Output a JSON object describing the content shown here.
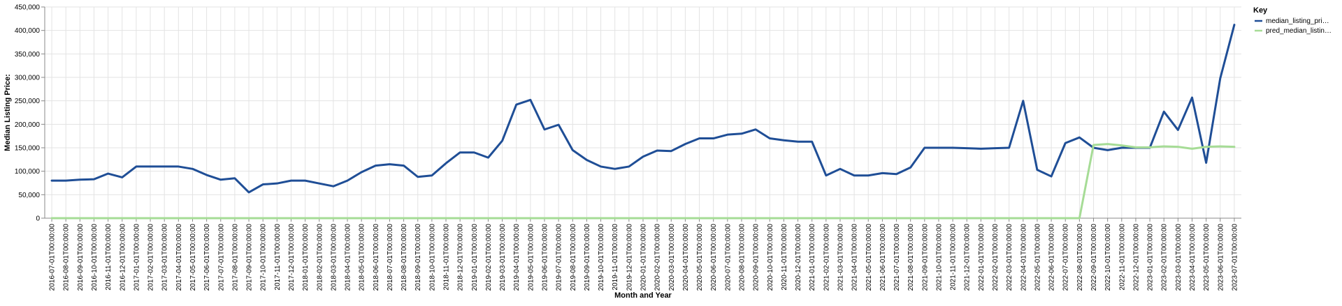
{
  "chart_data": {
    "type": "line",
    "title": "",
    "xlabel": "Month and Year",
    "ylabel": "Median Listing Price:",
    "ylim": [
      0,
      450000
    ],
    "yticks": [
      0,
      50000,
      100000,
      150000,
      200000,
      250000,
      300000,
      350000,
      400000,
      450000
    ],
    "ytick_labels": [
      "0",
      "50,000",
      "100,000",
      "150,000",
      "200,000",
      "250,000",
      "300,000",
      "350,000",
      "400,000",
      "450,000"
    ],
    "grid": true,
    "legend": {
      "title": "Key",
      "placement": "right",
      "entries": [
        "median_listing_pri…",
        "pred_median_listin…"
      ]
    },
    "x": [
      "2016-07-01T00:00:00",
      "2016-08-01T00:00:00",
      "2016-09-01T00:00:00",
      "2016-10-01T00:00:00",
      "2016-11-01T00:00:00",
      "2016-12-01T00:00:00",
      "2017-01-01T00:00:00",
      "2017-02-01T00:00:00",
      "2017-03-01T00:00:00",
      "2017-04-01T00:00:00",
      "2017-05-01T00:00:00",
      "2017-06-01T00:00:00",
      "2017-07-01T00:00:00",
      "2017-08-01T00:00:00",
      "2017-09-01T00:00:00",
      "2017-10-01T00:00:00",
      "2017-11-01T00:00:00",
      "2017-12-01T00:00:00",
      "2018-01-01T00:00:00",
      "2018-02-01T00:00:00",
      "2018-03-01T00:00:00",
      "2018-04-01T00:00:00",
      "2018-05-01T00:00:00",
      "2018-06-01T00:00:00",
      "2018-07-01T00:00:00",
      "2018-08-01T00:00:00",
      "2018-09-01T00:00:00",
      "2018-10-01T00:00:00",
      "2018-11-01T00:00:00",
      "2018-12-01T00:00:00",
      "2019-01-01T00:00:00",
      "2019-02-01T00:00:00",
      "2019-03-01T00:00:00",
      "2019-04-01T00:00:00",
      "2019-05-01T00:00:00",
      "2019-06-01T00:00:00",
      "2019-07-01T00:00:00",
      "2019-08-01T00:00:00",
      "2019-09-01T00:00:00",
      "2019-10-01T00:00:00",
      "2019-11-01T00:00:00",
      "2019-12-01T00:00:00",
      "2020-01-01T00:00:00",
      "2020-02-01T00:00:00",
      "2020-03-01T00:00:00",
      "2020-04-01T00:00:00",
      "2020-05-01T00:00:00",
      "2020-06-01T00:00:00",
      "2020-07-01T00:00:00",
      "2020-08-01T00:00:00",
      "2020-09-01T00:00:00",
      "2020-10-01T00:00:00",
      "2020-11-01T00:00:00",
      "2020-12-01T00:00:00",
      "2021-01-01T00:00:00",
      "2021-02-01T00:00:00",
      "2021-03-01T00:00:00",
      "2021-04-01T00:00:00",
      "2021-05-01T00:00:00",
      "2021-06-01T00:00:00",
      "2021-07-01T00:00:00",
      "2021-08-01T00:00:00",
      "2021-09-01T00:00:00",
      "2021-10-01T00:00:00",
      "2021-11-01T00:00:00",
      "2021-12-01T00:00:00",
      "2022-01-01T00:00:00",
      "2022-02-01T00:00:00",
      "2022-03-01T00:00:00",
      "2022-04-01T00:00:00",
      "2022-05-01T00:00:00",
      "2022-06-01T00:00:00",
      "2022-07-01T00:00:00",
      "2022-08-01T00:00:00",
      "2022-09-01T00:00:00",
      "2022-10-01T00:00:00",
      "2022-11-01T00:00:00",
      "2022-12-01T00:00:00",
      "2023-01-01T00:00:00",
      "2023-02-01T00:00:00",
      "2023-03-01T00:00:00",
      "2023-04-01T00:00:00",
      "2023-05-01T00:00:00",
      "2023-06-01T00:00:00",
      "2023-07-01T00:00:00"
    ],
    "series": [
      {
        "name": "median_listing_pri…",
        "color": "#1f4e96",
        "values": [
          80000,
          80000,
          82000,
          83000,
          95000,
          87000,
          110000,
          110000,
          110000,
          110000,
          105000,
          92000,
          82000,
          85000,
          55000,
          72000,
          74000,
          80000,
          80000,
          74000,
          68000,
          80000,
          98000,
          112000,
          115000,
          112000,
          88000,
          91000,
          117000,
          140000,
          140000,
          129000,
          165000,
          242000,
          252000,
          189000,
          199000,
          145000,
          124000,
          110000,
          105000,
          110000,
          131000,
          144000,
          143000,
          158000,
          170000,
          170000,
          178000,
          180000,
          189000,
          170000,
          166000,
          163000,
          163000,
          91000,
          105000,
          91000,
          91000,
          96000,
          94000,
          108000,
          150000,
          150000,
          150000,
          149000,
          148000,
          149000,
          150000,
          250000,
          103000,
          89000,
          160000,
          172000,
          150000,
          145000,
          150000,
          150000,
          150000,
          227000,
          188000,
          257000,
          118000,
          298000,
          412000
        ]
      },
      {
        "name": "pred_median_listin…",
        "color": "#a6dc96",
        "values": [
          0,
          0,
          0,
          0,
          0,
          0,
          0,
          0,
          0,
          0,
          0,
          0,
          0,
          0,
          0,
          0,
          0,
          0,
          0,
          0,
          0,
          0,
          0,
          0,
          0,
          0,
          0,
          0,
          0,
          0,
          0,
          0,
          0,
          0,
          0,
          0,
          0,
          0,
          0,
          0,
          0,
          0,
          0,
          0,
          0,
          0,
          0,
          0,
          0,
          0,
          0,
          0,
          0,
          0,
          0,
          0,
          0,
          0,
          0,
          0,
          0,
          0,
          0,
          0,
          0,
          0,
          0,
          0,
          0,
          0,
          0,
          0,
          0,
          0,
          156000,
          158000,
          155000,
          151000,
          151000,
          153000,
          152000,
          148000,
          152000,
          153000,
          152000
        ]
      }
    ]
  }
}
